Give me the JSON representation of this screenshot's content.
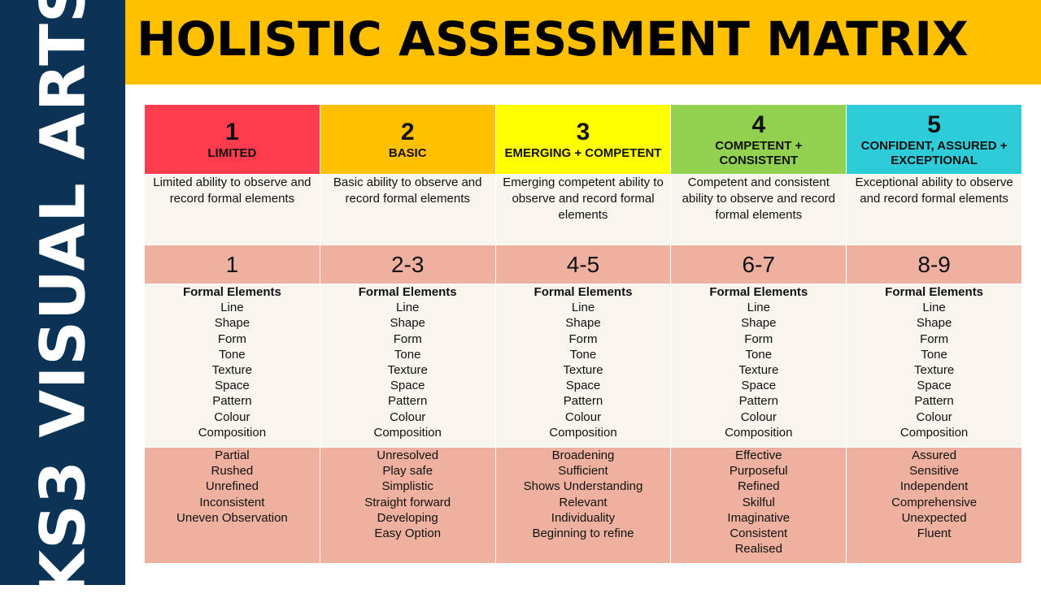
{
  "sidebar": {
    "title": "KS3 VISUAL ARTS",
    "color": "#0b3356"
  },
  "banner": {
    "title": "HOLISTIC ASSESSMENT MATRIX",
    "color": "#ffc000"
  },
  "levels": [
    {
      "number": "1",
      "label": "LIMITED",
      "color": "#ff3b4e",
      "description": "Limited ability to observe and record formal elements",
      "grade": "1",
      "descriptors": [
        "Partial",
        "Rushed",
        "Unrefined",
        "Inconsistent",
        "Uneven Observation"
      ]
    },
    {
      "number": "2",
      "label": "BASIC",
      "color": "#ffc000",
      "description": "Basic ability to observe and record formal elements",
      "grade": "2-3",
      "descriptors": [
        "Unresolved",
        "Play safe",
        "Simplistic",
        "Straight forward",
        "Developing",
        "Easy Option"
      ]
    },
    {
      "number": "3",
      "label": "EMERGING + COMPETENT",
      "color": "#ffff00",
      "description": "Emerging competent ability to observe and record formal elements",
      "grade": "4-5",
      "descriptors": [
        "Broadening",
        "Sufficient",
        "Shows Understanding",
        "Relevant",
        "Individuality",
        "Beginning to refine"
      ]
    },
    {
      "number": "4",
      "label": "COMPETENT + CONSISTENT",
      "color": "#92d050",
      "description": "Competent and consistent ability to observe and record formal elements",
      "grade": "6-7",
      "descriptors": [
        "Effective",
        "Purposeful",
        "Refined",
        "Skilful",
        "Imaginative",
        "Consistent",
        "Realised"
      ]
    },
    {
      "number": "5",
      "label": "CONFIDENT, ASSURED + EXCEPTIONAL",
      "color": "#2ecbd8",
      "description": "Exceptional ability to observe and record formal elements",
      "grade": "8-9",
      "descriptors": [
        "Assured",
        "Sensitive",
        "Independent",
        "Comprehensive",
        "Unexpected",
        "Fluent"
      ]
    }
  ],
  "formal_elements": {
    "title": "Formal Elements",
    "items": [
      "Line",
      "Shape",
      "Form",
      "Tone",
      "Texture",
      "Space",
      "Pattern",
      "Colour",
      "Composition"
    ]
  }
}
